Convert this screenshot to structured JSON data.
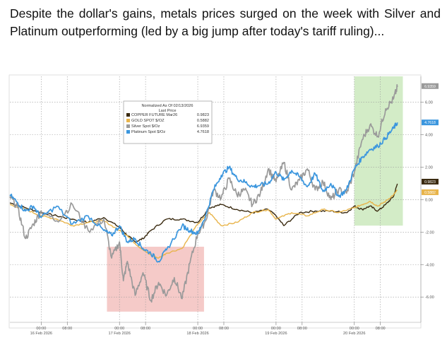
{
  "caption": "Despite the dollar's gains, metals prices surged on the week with Silver and Platinum outperforming (led by a big jump after today's tariff ruling)...",
  "chart_data": {
    "type": "line",
    "legend": {
      "title": "Normalized As Of 02/13/2026",
      "subtitle": "Last Price",
      "placement": "top-left"
    },
    "yticks": [
      "6.00",
      "4.00",
      "2.00",
      "0.00",
      "-2.00",
      "-4.00",
      "-6.00"
    ],
    "ytick_values": [
      6,
      4,
      2,
      0,
      -2,
      -4,
      -6
    ],
    "ylim": [
      -7.3,
      7.6
    ],
    "xticks": [
      {
        "time": "00:00",
        "date": "16 Feb 2026",
        "t": 0.0
      },
      {
        "time": "08:00",
        "t": 0.333
      },
      {
        "time": "00:00",
        "date": "17 Feb 2026",
        "t": 1.0
      },
      {
        "time": "08:00",
        "t": 1.333
      },
      {
        "time": "00:00",
        "date": "18 Feb 2026",
        "t": 2.0
      },
      {
        "time": "08:00",
        "t": 2.333
      },
      {
        "time": "00:00",
        "date": "19 Feb 2026",
        "t": 3.0
      },
      {
        "time": "08:00",
        "t": 3.333
      },
      {
        "time": "00:00",
        "date": "20 Feb 2026",
        "t": 4.0
      },
      {
        "time": "08:00",
        "t": 4.333
      }
    ],
    "xlim": [
      -0.4,
      4.85
    ],
    "grid": true,
    "highlights": [
      {
        "x0": 0.84,
        "x1": 2.08,
        "y0": -6.9,
        "y1": -2.9,
        "color": "#f2b8b5"
      },
      {
        "x0": 4.0,
        "x1": 4.62,
        "y0": -1.6,
        "y1": 7.6,
        "color": "#c4e6b4"
      }
    ],
    "series": [
      {
        "name": "COPPER FUTURE Mar26",
        "last": "0.9823",
        "color": "#3a2a10",
        "x": [
          -0.4,
          -0.2,
          0.0,
          0.2,
          0.4,
          0.6,
          0.8,
          1.0,
          1.1,
          1.2,
          1.3,
          1.4,
          1.6,
          1.8,
          2.0,
          2.15,
          2.3,
          2.5,
          2.7,
          2.9,
          3.0,
          3.1,
          3.3,
          3.5,
          3.7,
          3.9,
          4.0,
          4.1,
          4.2,
          4.3,
          4.4,
          4.5,
          4.55
        ],
        "y": [
          -0.2,
          -0.5,
          -0.8,
          -1.0,
          -1.2,
          -1.4,
          -1.1,
          -1.7,
          -2.2,
          -2.6,
          -2.4,
          -1.9,
          -1.2,
          -1.2,
          -1.4,
          -0.5,
          -0.3,
          -0.6,
          -0.8,
          -0.6,
          -1.0,
          -1.6,
          -0.8,
          -0.7,
          -0.7,
          -0.8,
          -0.4,
          -0.6,
          -0.4,
          -0.7,
          -0.3,
          0.2,
          0.98
        ]
      },
      {
        "name": "GOLD SPOT $/OZ",
        "last": "0.5882",
        "color": "#e8b44a",
        "x": [
          -0.4,
          -0.2,
          0.0,
          0.2,
          0.4,
          0.6,
          0.8,
          1.0,
          1.1,
          1.2,
          1.3,
          1.4,
          1.5,
          1.6,
          1.8,
          2.0,
          2.15,
          2.3,
          2.5,
          2.7,
          2.9,
          3.0,
          3.2,
          3.4,
          3.6,
          3.8,
          4.0,
          4.1,
          4.2,
          4.3,
          4.4,
          4.5,
          4.55
        ],
        "y": [
          -0.3,
          -0.6,
          -1.0,
          -1.2,
          -1.6,
          -1.4,
          -1.3,
          -1.9,
          -2.2,
          -2.7,
          -3.1,
          -3.4,
          -3.6,
          -3.3,
          -3.0,
          -1.5,
          -0.8,
          -1.6,
          -1.4,
          -0.8,
          -0.6,
          -1.2,
          -0.8,
          -1.0,
          -0.6,
          -0.8,
          -0.5,
          -0.3,
          -0.1,
          -0.4,
          -0.1,
          0.3,
          0.59
        ]
      },
      {
        "name": "Silver Spot $/Oz",
        "last": "6.9359",
        "color": "#9a9a9a",
        "x": [
          -0.4,
          -0.3,
          -0.2,
          -0.1,
          0.0,
          0.2,
          0.4,
          0.6,
          0.8,
          0.9,
          1.0,
          1.05,
          1.1,
          1.2,
          1.3,
          1.4,
          1.5,
          1.6,
          1.7,
          1.8,
          1.9,
          2.0,
          2.1,
          2.2,
          2.3,
          2.4,
          2.5,
          2.6,
          2.7,
          2.8,
          2.9,
          3.0,
          3.1,
          3.2,
          3.3,
          3.4,
          3.5,
          3.6,
          3.7,
          3.8,
          3.9,
          4.0,
          4.1,
          4.2,
          4.3,
          4.4,
          4.5,
          4.55
        ],
        "y": [
          0.2,
          -0.5,
          -2.4,
          -1.5,
          -0.7,
          -1.3,
          -0.3,
          -1.9,
          -1.2,
          -3.6,
          -2.6,
          -5.0,
          -3.8,
          -5.9,
          -4.5,
          -6.2,
          -5.1,
          -5.9,
          -4.8,
          -6.1,
          -3.9,
          -2.1,
          -1.3,
          0.6,
          0.1,
          1.3,
          0.3,
          0.6,
          -0.3,
          0.4,
          1.9,
          1.1,
          2.3,
          0.6,
          1.2,
          1.9,
          0.6,
          1.1,
          0.0,
          0.6,
          0.4,
          1.7,
          3.7,
          4.6,
          3.9,
          5.6,
          6.2,
          6.94
        ]
      },
      {
        "name": "Platinum Spot $/Oz",
        "last": "4.7618",
        "color": "#3b96de",
        "x": [
          -0.4,
          -0.3,
          -0.2,
          -0.1,
          0.0,
          0.2,
          0.4,
          0.6,
          0.8,
          0.9,
          1.0,
          1.1,
          1.2,
          1.3,
          1.4,
          1.5,
          1.6,
          1.8,
          1.9,
          2.0,
          2.1,
          2.2,
          2.3,
          2.4,
          2.5,
          2.6,
          2.7,
          2.8,
          2.9,
          3.0,
          3.1,
          3.2,
          3.3,
          3.4,
          3.5,
          3.6,
          3.7,
          3.8,
          3.9,
          4.0,
          4.1,
          4.2,
          4.3,
          4.4,
          4.5,
          4.55
        ],
        "y": [
          0.3,
          -0.2,
          -0.7,
          -0.4,
          -1.1,
          -0.4,
          -1.5,
          -1.0,
          -1.9,
          -2.2,
          -1.6,
          -2.6,
          -2.4,
          -3.0,
          -3.3,
          -3.8,
          -3.1,
          -1.6,
          -1.9,
          -2.1,
          -1.0,
          0.6,
          1.5,
          2.0,
          1.3,
          1.1,
          0.8,
          0.9,
          1.0,
          1.7,
          1.2,
          1.8,
          1.4,
          0.8,
          1.6,
          0.5,
          1.0,
          0.2,
          0.6,
          1.9,
          2.6,
          3.1,
          3.3,
          3.8,
          4.4,
          4.76
        ]
      }
    ]
  }
}
